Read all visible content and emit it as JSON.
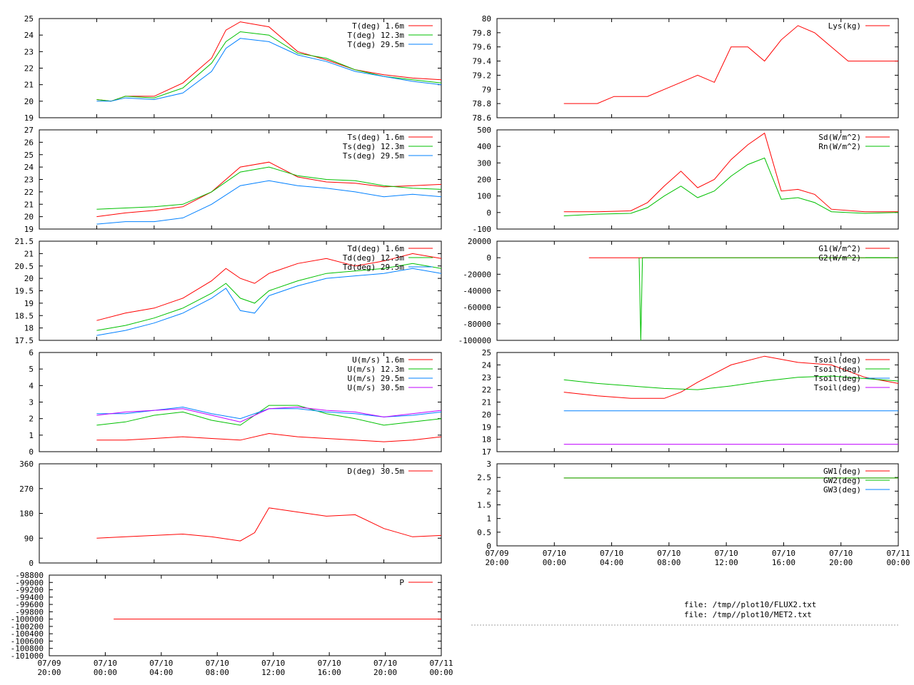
{
  "colors": {
    "red": "#ff0000",
    "green": "#00c000",
    "blue": "#0080ff",
    "magenta": "#c000ff",
    "axis": "#000000",
    "dash": "#a0a0a0"
  },
  "file_labels": [
    "file: /tmp//plot10/FLUX2.txt",
    "file: /tmp//plot10/MET2.txt"
  ],
  "chart_data": [
    {
      "id": "temp",
      "type": "line",
      "x_unit": "hours since 07/09 20:00",
      "xlim": [
        0,
        28
      ],
      "ylim": [
        19,
        25
      ],
      "y_ticks": [
        "19",
        "20",
        "21",
        "22",
        "23",
        "24",
        "25"
      ],
      "x_ticks": [],
      "series": [
        {
          "name": "T(deg)  1.6m",
          "color": "red",
          "x": [
            4,
            5,
            6,
            8,
            10,
            12,
            13,
            14,
            16,
            18,
            20,
            22,
            24,
            26,
            28
          ],
          "y": [
            20.1,
            20.0,
            20.3,
            20.3,
            21.1,
            22.6,
            24.3,
            24.8,
            24.5,
            23.0,
            22.5,
            21.9,
            21.6,
            21.4,
            21.3
          ]
        },
        {
          "name": "T(deg) 12.3m",
          "color": "green",
          "x": [
            4,
            5,
            6,
            8,
            10,
            12,
            13,
            14,
            16,
            18,
            20,
            22,
            24,
            26,
            28
          ],
          "y": [
            20.1,
            20.0,
            20.3,
            20.2,
            20.8,
            22.3,
            23.6,
            24.2,
            24.0,
            22.9,
            22.6,
            21.9,
            21.5,
            21.3,
            21.1
          ]
        },
        {
          "name": "T(deg) 29.5m",
          "color": "blue",
          "x": [
            4,
            5,
            6,
            8,
            10,
            12,
            13,
            14,
            16,
            18,
            20,
            22,
            24,
            26,
            28
          ],
          "y": [
            20.0,
            20.0,
            20.2,
            20.1,
            20.5,
            21.8,
            23.2,
            23.8,
            23.6,
            22.8,
            22.4,
            21.8,
            21.5,
            21.2,
            21.0
          ]
        }
      ]
    },
    {
      "id": "tsurf",
      "type": "line",
      "x_unit": "hours since 07/09 20:00",
      "xlim": [
        0,
        28
      ],
      "ylim": [
        19,
        27
      ],
      "y_ticks": [
        "19",
        "20",
        "21",
        "22",
        "23",
        "24",
        "25",
        "26",
        "27"
      ],
      "x_ticks": [],
      "series": [
        {
          "name": "Ts(deg)  1.6m",
          "color": "red",
          "x": [
            4,
            6,
            8,
            10,
            12,
            14,
            16,
            18,
            20,
            22,
            24,
            26,
            28
          ],
          "y": [
            20.0,
            20.3,
            20.5,
            20.8,
            22.0,
            24.0,
            24.4,
            23.2,
            22.8,
            22.7,
            22.4,
            22.5,
            22.6
          ]
        },
        {
          "name": "Ts(deg) 12.3m",
          "color": "green",
          "x": [
            4,
            6,
            8,
            10,
            12,
            14,
            16,
            18,
            20,
            22,
            24,
            26,
            28
          ],
          "y": [
            20.6,
            20.7,
            20.8,
            21.0,
            22.0,
            23.6,
            24.0,
            23.3,
            23.0,
            22.9,
            22.5,
            22.3,
            22.2
          ]
        },
        {
          "name": "Ts(deg) 29.5m",
          "color": "blue",
          "x": [
            4,
            6,
            8,
            10,
            12,
            14,
            16,
            18,
            20,
            22,
            24,
            26,
            28
          ],
          "y": [
            19.4,
            19.6,
            19.6,
            19.9,
            21.0,
            22.5,
            22.9,
            22.5,
            22.3,
            22.0,
            21.6,
            21.8,
            21.6
          ]
        }
      ]
    },
    {
      "id": "dewpt",
      "type": "line",
      "x_unit": "hours since 07/09 20:00",
      "xlim": [
        0,
        28
      ],
      "ylim": [
        17.5,
        21.5
      ],
      "y_ticks": [
        "17.5",
        "18",
        "18.5",
        "19",
        "19.5",
        "20",
        "20.5",
        "21",
        "21.5"
      ],
      "x_ticks": [],
      "series": [
        {
          "name": "Td(deg)  1.6m",
          "color": "red",
          "x": [
            4,
            6,
            8,
            10,
            12,
            13,
            14,
            15,
            16,
            18,
            20,
            22,
            24,
            26,
            28
          ],
          "y": [
            18.3,
            18.6,
            18.8,
            19.2,
            19.9,
            20.4,
            20.0,
            19.8,
            20.2,
            20.6,
            20.8,
            20.5,
            20.7,
            21.0,
            20.8
          ]
        },
        {
          "name": "Td(deg) 12.3m",
          "color": "green",
          "x": [
            4,
            6,
            8,
            10,
            12,
            13,
            14,
            15,
            16,
            18,
            20,
            22,
            24,
            26,
            28
          ],
          "y": [
            17.9,
            18.1,
            18.4,
            18.8,
            19.4,
            19.8,
            19.2,
            19.0,
            19.5,
            19.9,
            20.2,
            20.3,
            20.4,
            20.6,
            20.4
          ]
        },
        {
          "name": "Td(deg) 29.5m",
          "color": "blue",
          "x": [
            4,
            6,
            8,
            10,
            12,
            13,
            14,
            15,
            16,
            18,
            20,
            22,
            24,
            26,
            28
          ],
          "y": [
            17.7,
            17.9,
            18.2,
            18.6,
            19.2,
            19.6,
            18.7,
            18.6,
            19.3,
            19.7,
            20.0,
            20.1,
            20.2,
            20.4,
            20.2
          ]
        }
      ]
    },
    {
      "id": "wind",
      "type": "line",
      "x_unit": "hours since 07/09 20:00",
      "xlim": [
        0,
        28
      ],
      "ylim": [
        0,
        6
      ],
      "y_ticks": [
        "0",
        "1",
        "2",
        "3",
        "4",
        "5",
        "6"
      ],
      "x_ticks": [],
      "series": [
        {
          "name": "U(m/s)  1.6m",
          "color": "red",
          "x": [
            4,
            6,
            8,
            10,
            12,
            14,
            16,
            18,
            20,
            22,
            24,
            26,
            28
          ],
          "y": [
            0.7,
            0.7,
            0.8,
            0.9,
            0.8,
            0.7,
            1.1,
            0.9,
            0.8,
            0.7,
            0.6,
            0.7,
            0.9
          ]
        },
        {
          "name": "U(m/s) 12.3m",
          "color": "green",
          "x": [
            4,
            6,
            8,
            10,
            12,
            14,
            16,
            18,
            20,
            22,
            24,
            26,
            28
          ],
          "y": [
            1.6,
            1.8,
            2.2,
            2.4,
            1.9,
            1.6,
            2.8,
            2.8,
            2.3,
            2.0,
            1.6,
            1.8,
            2.0
          ]
        },
        {
          "name": "U(m/s) 29.5m",
          "color": "blue",
          "x": [
            4,
            6,
            8,
            10,
            12,
            14,
            16,
            18,
            20,
            22,
            24,
            26,
            28
          ],
          "y": [
            2.3,
            2.3,
            2.5,
            2.7,
            2.3,
            2.0,
            2.6,
            2.6,
            2.4,
            2.3,
            2.1,
            2.2,
            2.4
          ]
        },
        {
          "name": "U(m/s) 30.5m",
          "color": "magenta",
          "x": [
            4,
            6,
            8,
            10,
            12,
            14,
            16,
            18,
            20,
            22,
            24,
            26,
            28
          ],
          "y": [
            2.2,
            2.4,
            2.5,
            2.6,
            2.2,
            1.8,
            2.6,
            2.7,
            2.5,
            2.4,
            2.1,
            2.3,
            2.5
          ]
        }
      ]
    },
    {
      "id": "winddir",
      "type": "line",
      "x_unit": "hours since 07/09 20:00",
      "xlim": [
        0,
        28
      ],
      "ylim": [
        0,
        360
      ],
      "y_ticks": [
        "0",
        "90",
        "180",
        "270",
        "360"
      ],
      "x_ticks": [],
      "series": [
        {
          "name": "D(deg)  30.5m",
          "color": "red",
          "x": [
            4,
            6,
            8,
            10,
            12,
            14,
            15,
            16,
            18,
            20,
            22,
            24,
            26,
            28
          ],
          "y": [
            90,
            95,
            100,
            105,
            95,
            80,
            110,
            200,
            185,
            170,
            175,
            125,
            95,
            100
          ]
        }
      ]
    },
    {
      "id": "pressure",
      "type": "line",
      "x_unit": "hours since 07/09 20:00",
      "xlim": [
        0,
        28
      ],
      "ylim": [
        -101000,
        -98800
      ],
      "y_ticks": [
        "-101000",
        "-100800",
        "-100600",
        "-100400",
        "-100200",
        "-100000",
        "-99800",
        "-99600",
        "-99400",
        "-99200",
        "-99000",
        "-98800"
      ],
      "x_ticks": [
        "07/09\n20:00",
        "07/10\n00:00",
        "07/10\n04:00",
        "07/10\n08:00",
        "07/10\n12:00",
        "07/10\n16:00",
        "07/10\n20:00",
        "07/11\n00:00"
      ],
      "series": [
        {
          "name": "P",
          "color": "red",
          "x": [
            4.6,
            28
          ],
          "y": [
            -100000,
            -100000
          ]
        }
      ]
    },
    {
      "id": "lys",
      "type": "line",
      "x_unit": "hours since 07/09 20:00",
      "xlim": [
        0,
        24
      ],
      "ylim": [
        78.6,
        80
      ],
      "y_ticks": [
        "78.6",
        "78.8",
        "79",
        "79.2",
        "79.4",
        "79.6",
        "79.8",
        "80"
      ],
      "x_ticks": [],
      "series": [
        {
          "name": "Lys(kg)",
          "color": "red",
          "x": [
            4,
            5,
            6,
            7,
            8,
            9,
            10,
            11,
            12,
            13,
            14,
            15,
            16,
            17,
            18,
            19,
            20,
            21,
            22,
            23,
            24
          ],
          "y": [
            78.8,
            78.8,
            78.8,
            78.9,
            78.9,
            78.9,
            79.0,
            79.1,
            79.2,
            79.1,
            79.6,
            79.6,
            79.4,
            79.7,
            79.9,
            79.8,
            79.6,
            79.4,
            79.4,
            79.4,
            79.4
          ]
        }
      ]
    },
    {
      "id": "radiation",
      "type": "line",
      "x_unit": "hours since 07/09 20:00",
      "xlim": [
        0,
        24
      ],
      "ylim": [
        -100,
        500
      ],
      "y_ticks": [
        "-100",
        "0",
        "100",
        "200",
        "300",
        "400",
        "500"
      ],
      "x_ticks": [],
      "series": [
        {
          "name": "Sd(W/m^2)",
          "color": "red",
          "x": [
            4,
            6,
            8,
            9,
            10,
            11,
            12,
            13,
            14,
            15,
            16,
            17,
            18,
            19,
            20,
            22,
            24
          ],
          "y": [
            5,
            5,
            10,
            60,
            160,
            250,
            150,
            200,
            320,
            410,
            480,
            130,
            140,
            110,
            20,
            5,
            5
          ]
        },
        {
          "name": "Rn(W/m^2)",
          "color": "green",
          "x": [
            4,
            6,
            8,
            9,
            10,
            11,
            12,
            13,
            14,
            15,
            16,
            17,
            18,
            19,
            20,
            22,
            24
          ],
          "y": [
            -20,
            -10,
            -5,
            30,
            100,
            160,
            90,
            130,
            220,
            290,
            330,
            80,
            90,
            60,
            5,
            -5,
            0
          ]
        }
      ]
    },
    {
      "id": "soilflux",
      "type": "line",
      "x_unit": "hours since 07/09 20:00",
      "xlim": [
        0,
        24
      ],
      "ylim": [
        -100000,
        20000
      ],
      "y_ticks": [
        "-100000",
        "-80000",
        "-60000",
        "-40000",
        "-20000",
        "0",
        "20000"
      ],
      "x_ticks": [],
      "series": [
        {
          "name": "G1(W/m^2)",
          "color": "red",
          "x": [
            5.5,
            24
          ],
          "y": [
            0,
            0
          ]
        },
        {
          "name": "G2(W/m^2)",
          "color": "green",
          "x": [
            8.5,
            8.6,
            8.7,
            24
          ],
          "y": [
            0,
            -100000,
            0,
            0
          ]
        }
      ]
    },
    {
      "id": "soiltemp",
      "type": "line",
      "x_unit": "hours since 07/09 20:00",
      "xlim": [
        0,
        24
      ],
      "ylim": [
        17,
        25
      ],
      "y_ticks": [
        "17",
        "18",
        "19",
        "20",
        "21",
        "22",
        "23",
        "24",
        "25"
      ],
      "x_ticks": [],
      "series": [
        {
          "name": "Tsoil(deg)",
          "color": "red",
          "x": [
            4,
            6,
            8,
            10,
            11,
            12,
            14,
            16,
            18,
            20,
            22,
            24
          ],
          "y": [
            21.8,
            21.5,
            21.3,
            21.3,
            21.8,
            22.6,
            24.0,
            24.7,
            24.2,
            24.0,
            23.0,
            22.5
          ]
        },
        {
          "name": "Tsoil(deg)",
          "color": "green",
          "x": [
            4,
            6,
            8,
            10,
            12,
            14,
            16,
            18,
            20,
            22,
            24
          ],
          "y": [
            22.8,
            22.5,
            22.3,
            22.1,
            22.0,
            22.3,
            22.7,
            23.0,
            23.1,
            22.9,
            22.7
          ]
        },
        {
          "name": "Tsoil(deg)",
          "color": "blue",
          "x": [
            4,
            24
          ],
          "y": [
            20.3,
            20.3
          ]
        },
        {
          "name": "Tsoil(deg)",
          "color": "magenta",
          "x": [
            4,
            24
          ],
          "y": [
            17.6,
            17.6
          ]
        }
      ]
    },
    {
      "id": "groundwater",
      "type": "line",
      "x_unit": "hours since 07/09 20:00",
      "xlim": [
        0,
        24
      ],
      "ylim": [
        0,
        3
      ],
      "y_ticks": [
        "0",
        "0.5",
        "1",
        "1.5",
        "2",
        "2.5",
        "3"
      ],
      "x_ticks": [
        "07/09\n20:00",
        "07/10\n00:00",
        "07/10\n04:00",
        "07/10\n08:00",
        "07/10\n12:00",
        "07/10\n16:00",
        "07/10\n20:00",
        "07/11\n00:00"
      ],
      "series": [
        {
          "name": "GW1(deg)",
          "color": "red",
          "x": [
            4,
            24
          ],
          "y": [
            2.48,
            2.48
          ]
        },
        {
          "name": "GW2(deg)",
          "color": "green",
          "x": [
            4,
            24
          ],
          "y": [
            2.48,
            2.48
          ]
        },
        {
          "name": "GW3(deg)",
          "color": "blue",
          "x": [],
          "y": []
        }
      ]
    }
  ]
}
